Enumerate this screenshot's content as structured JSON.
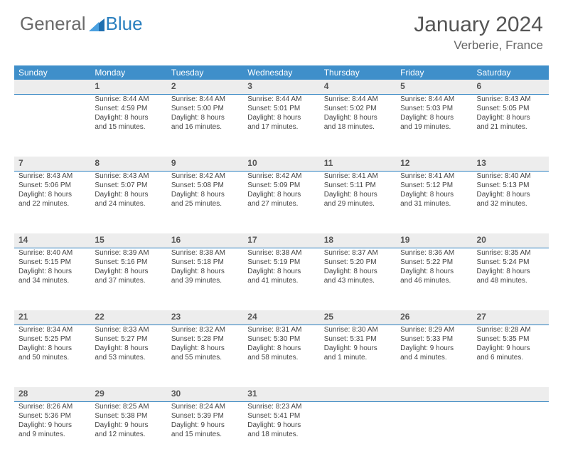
{
  "logo": {
    "text1": "General",
    "text2": "Blue"
  },
  "title": "January 2024",
  "location": "Verberie, France",
  "colors": {
    "header_bg": "#3f8fca",
    "daynum_bg": "#ededed",
    "daynum_border": "#2a7fbf",
    "text": "#444"
  },
  "weekdays": [
    "Sunday",
    "Monday",
    "Tuesday",
    "Wednesday",
    "Thursday",
    "Friday",
    "Saturday"
  ],
  "weeks": [
    {
      "nums": [
        "",
        "1",
        "2",
        "3",
        "4",
        "5",
        "6"
      ],
      "cells": [
        [],
        [
          "Sunrise: 8:44 AM",
          "Sunset: 4:59 PM",
          "Daylight: 8 hours",
          "and 15 minutes."
        ],
        [
          "Sunrise: 8:44 AM",
          "Sunset: 5:00 PM",
          "Daylight: 8 hours",
          "and 16 minutes."
        ],
        [
          "Sunrise: 8:44 AM",
          "Sunset: 5:01 PM",
          "Daylight: 8 hours",
          "and 17 minutes."
        ],
        [
          "Sunrise: 8:44 AM",
          "Sunset: 5:02 PM",
          "Daylight: 8 hours",
          "and 18 minutes."
        ],
        [
          "Sunrise: 8:44 AM",
          "Sunset: 5:03 PM",
          "Daylight: 8 hours",
          "and 19 minutes."
        ],
        [
          "Sunrise: 8:43 AM",
          "Sunset: 5:05 PM",
          "Daylight: 8 hours",
          "and 21 minutes."
        ]
      ]
    },
    {
      "nums": [
        "7",
        "8",
        "9",
        "10",
        "11",
        "12",
        "13"
      ],
      "cells": [
        [
          "Sunrise: 8:43 AM",
          "Sunset: 5:06 PM",
          "Daylight: 8 hours",
          "and 22 minutes."
        ],
        [
          "Sunrise: 8:43 AM",
          "Sunset: 5:07 PM",
          "Daylight: 8 hours",
          "and 24 minutes."
        ],
        [
          "Sunrise: 8:42 AM",
          "Sunset: 5:08 PM",
          "Daylight: 8 hours",
          "and 25 minutes."
        ],
        [
          "Sunrise: 8:42 AM",
          "Sunset: 5:09 PM",
          "Daylight: 8 hours",
          "and 27 minutes."
        ],
        [
          "Sunrise: 8:41 AM",
          "Sunset: 5:11 PM",
          "Daylight: 8 hours",
          "and 29 minutes."
        ],
        [
          "Sunrise: 8:41 AM",
          "Sunset: 5:12 PM",
          "Daylight: 8 hours",
          "and 31 minutes."
        ],
        [
          "Sunrise: 8:40 AM",
          "Sunset: 5:13 PM",
          "Daylight: 8 hours",
          "and 32 minutes."
        ]
      ]
    },
    {
      "nums": [
        "14",
        "15",
        "16",
        "17",
        "18",
        "19",
        "20"
      ],
      "cells": [
        [
          "Sunrise: 8:40 AM",
          "Sunset: 5:15 PM",
          "Daylight: 8 hours",
          "and 34 minutes."
        ],
        [
          "Sunrise: 8:39 AM",
          "Sunset: 5:16 PM",
          "Daylight: 8 hours",
          "and 37 minutes."
        ],
        [
          "Sunrise: 8:38 AM",
          "Sunset: 5:18 PM",
          "Daylight: 8 hours",
          "and 39 minutes."
        ],
        [
          "Sunrise: 8:38 AM",
          "Sunset: 5:19 PM",
          "Daylight: 8 hours",
          "and 41 minutes."
        ],
        [
          "Sunrise: 8:37 AM",
          "Sunset: 5:20 PM",
          "Daylight: 8 hours",
          "and 43 minutes."
        ],
        [
          "Sunrise: 8:36 AM",
          "Sunset: 5:22 PM",
          "Daylight: 8 hours",
          "and 46 minutes."
        ],
        [
          "Sunrise: 8:35 AM",
          "Sunset: 5:24 PM",
          "Daylight: 8 hours",
          "and 48 minutes."
        ]
      ]
    },
    {
      "nums": [
        "21",
        "22",
        "23",
        "24",
        "25",
        "26",
        "27"
      ],
      "cells": [
        [
          "Sunrise: 8:34 AM",
          "Sunset: 5:25 PM",
          "Daylight: 8 hours",
          "and 50 minutes."
        ],
        [
          "Sunrise: 8:33 AM",
          "Sunset: 5:27 PM",
          "Daylight: 8 hours",
          "and 53 minutes."
        ],
        [
          "Sunrise: 8:32 AM",
          "Sunset: 5:28 PM",
          "Daylight: 8 hours",
          "and 55 minutes."
        ],
        [
          "Sunrise: 8:31 AM",
          "Sunset: 5:30 PM",
          "Daylight: 8 hours",
          "and 58 minutes."
        ],
        [
          "Sunrise: 8:30 AM",
          "Sunset: 5:31 PM",
          "Daylight: 9 hours",
          "and 1 minute."
        ],
        [
          "Sunrise: 8:29 AM",
          "Sunset: 5:33 PM",
          "Daylight: 9 hours",
          "and 4 minutes."
        ],
        [
          "Sunrise: 8:28 AM",
          "Sunset: 5:35 PM",
          "Daylight: 9 hours",
          "and 6 minutes."
        ]
      ]
    },
    {
      "nums": [
        "28",
        "29",
        "30",
        "31",
        "",
        "",
        ""
      ],
      "cells": [
        [
          "Sunrise: 8:26 AM",
          "Sunset: 5:36 PM",
          "Daylight: 9 hours",
          "and 9 minutes."
        ],
        [
          "Sunrise: 8:25 AM",
          "Sunset: 5:38 PM",
          "Daylight: 9 hours",
          "and 12 minutes."
        ],
        [
          "Sunrise: 8:24 AM",
          "Sunset: 5:39 PM",
          "Daylight: 9 hours",
          "and 15 minutes."
        ],
        [
          "Sunrise: 8:23 AM",
          "Sunset: 5:41 PM",
          "Daylight: 9 hours",
          "and 18 minutes."
        ],
        [],
        [],
        []
      ]
    }
  ]
}
